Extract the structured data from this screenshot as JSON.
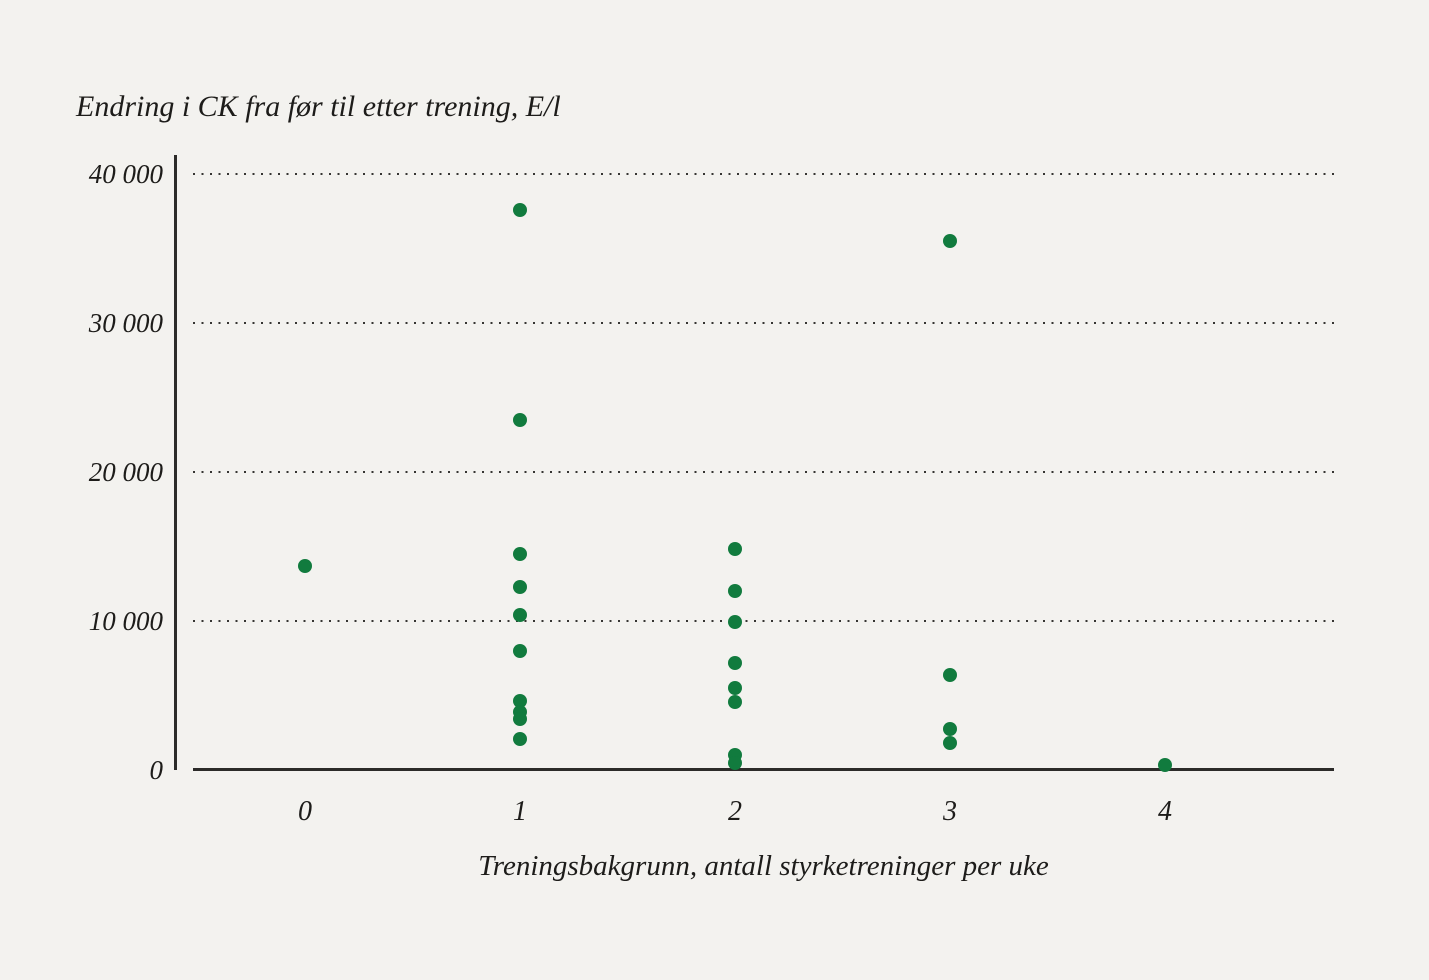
{
  "figure": {
    "background_color": "#f3f2ef",
    "text_color": "#1d1c1a",
    "axis_color": "#2c2b29"
  },
  "chart_data": {
    "type": "scatter",
    "title": "Endring i CK fra før til etter trening, E/l",
    "xlabel": "Treningsbakgrunn, antall styrketreninger per uke",
    "point_color": "#117b3e",
    "grid": "horizontal dotted lines at each y tick above zero",
    "legend": "none",
    "ylim": [
      0,
      40000
    ],
    "xlim_ticks": [
      0,
      4
    ],
    "y_ticks": [
      {
        "value": 0,
        "label": "0"
      },
      {
        "value": 10000,
        "label": "10 000"
      },
      {
        "value": 20000,
        "label": "20 000"
      },
      {
        "value": 30000,
        "label": "30 000"
      },
      {
        "value": 40000,
        "label": "40 000"
      }
    ],
    "x_ticks": [
      {
        "value": 0,
        "label": "0"
      },
      {
        "value": 1,
        "label": "1"
      },
      {
        "value": 2,
        "label": "2"
      },
      {
        "value": 3,
        "label": "3"
      },
      {
        "value": 4,
        "label": "4"
      }
    ],
    "points": [
      {
        "x": 0,
        "y": 13700
      },
      {
        "x": 1,
        "y": 37600
      },
      {
        "x": 1,
        "y": 23500
      },
      {
        "x": 1,
        "y": 14500
      },
      {
        "x": 1,
        "y": 12300
      },
      {
        "x": 1,
        "y": 10400
      },
      {
        "x": 1,
        "y": 8000
      },
      {
        "x": 1,
        "y": 4600
      },
      {
        "x": 1,
        "y": 3900
      },
      {
        "x": 1,
        "y": 3400
      },
      {
        "x": 1,
        "y": 2100
      },
      {
        "x": 2,
        "y": 14800
      },
      {
        "x": 2,
        "y": 12000
      },
      {
        "x": 2,
        "y": 9900
      },
      {
        "x": 2,
        "y": 7200
      },
      {
        "x": 2,
        "y": 5500
      },
      {
        "x": 2,
        "y": 4550
      },
      {
        "x": 2,
        "y": 1000
      },
      {
        "x": 2,
        "y": 500
      },
      {
        "x": 3,
        "y": 35500
      },
      {
        "x": 3,
        "y": 6400
      },
      {
        "x": 3,
        "y": 2750
      },
      {
        "x": 3,
        "y": 1800
      },
      {
        "x": 4,
        "y": 350
      }
    ]
  }
}
